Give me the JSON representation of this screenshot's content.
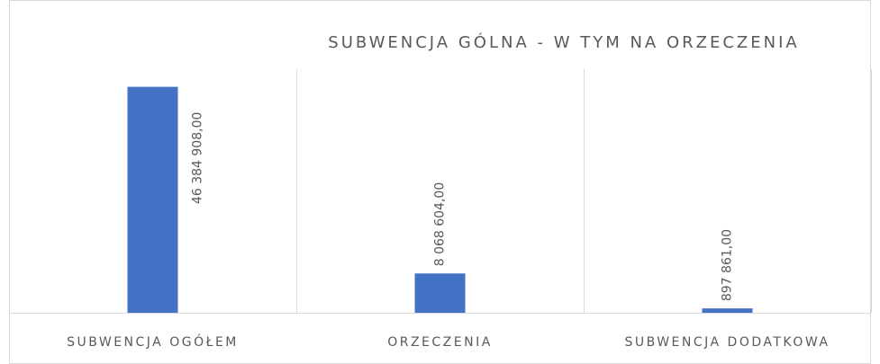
{
  "chart_data": {
    "type": "bar",
    "title": "SUBWENCJA GÓLNA - W TYM NA ORZECZENIA",
    "categories": [
      "SUBWENCJA OGÓŁEM",
      "ORZECZENIA",
      "SUBWENCJA DODATKOWA"
    ],
    "values": [
      46384908,
      8068604,
      897861
    ],
    "value_labels": [
      "46 384 908,00",
      "8 068 604,00",
      "897 861,00"
    ],
    "color": "#4472c4",
    "ylim": [
      0,
      50000000
    ]
  }
}
